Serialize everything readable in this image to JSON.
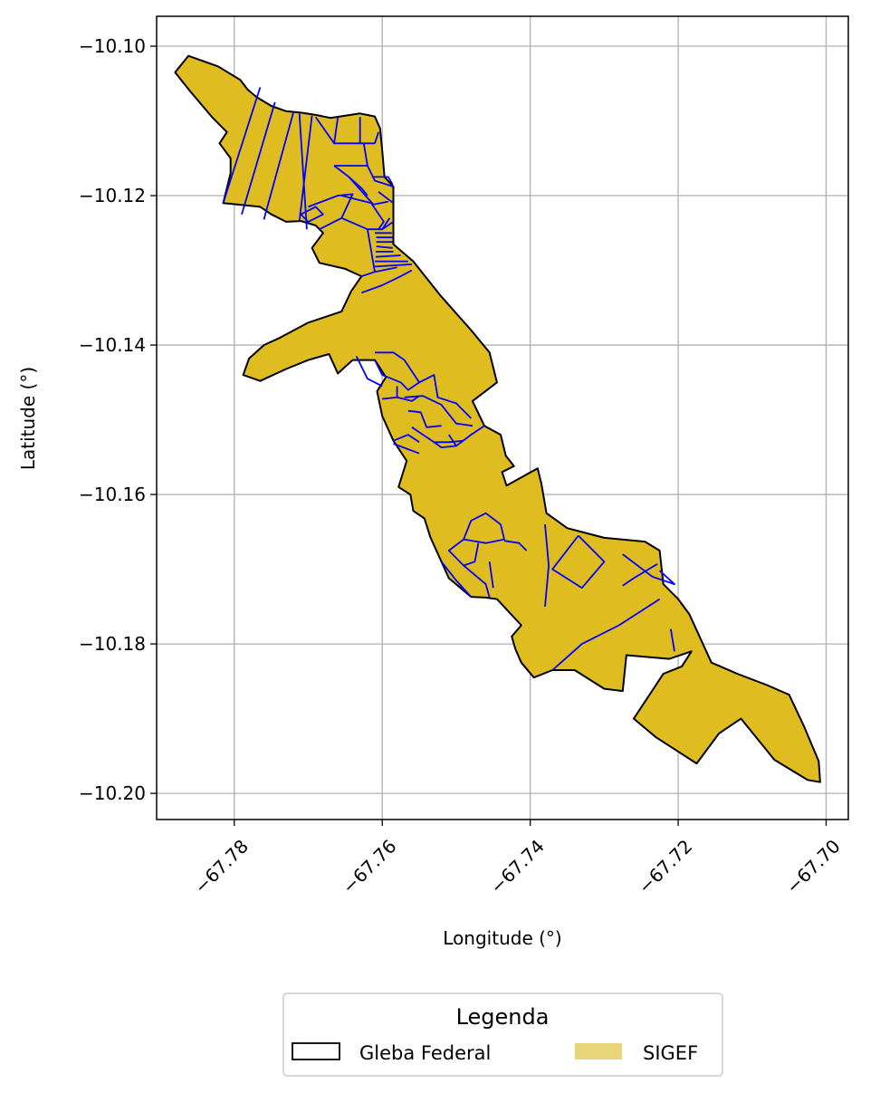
{
  "chart_data": {
    "type": "map",
    "xlabel": "Longitude (°)",
    "ylabel": "Latitude (°)",
    "xlim": [
      -67.7905,
      -67.697
    ],
    "ylim": [
      -10.2035,
      -10.096
    ],
    "x_ticks": [
      {
        "value": -67.78,
        "label": "−67.78"
      },
      {
        "value": -67.76,
        "label": "−67.76"
      },
      {
        "value": -67.74,
        "label": "−67.74"
      },
      {
        "value": -67.72,
        "label": "−67.72"
      },
      {
        "value": -67.7,
        "label": "−67.70"
      }
    ],
    "y_ticks": [
      {
        "value": -10.1,
        "label": "−10.10"
      },
      {
        "value": -10.12,
        "label": "−10.12"
      },
      {
        "value": -10.14,
        "label": "−10.14"
      },
      {
        "value": -10.16,
        "label": "−10.16"
      },
      {
        "value": -10.18,
        "label": "−10.18"
      },
      {
        "value": -10.2,
        "label": "−10.20"
      }
    ],
    "grid": true,
    "legend": {
      "title": "Legenda",
      "position": "bottom-center",
      "entries": [
        {
          "label": "Gleba Federal",
          "style": "outline",
          "color": "#000000"
        },
        {
          "label": "SIGEF",
          "style": "fill",
          "color": "#e8d57a"
        }
      ]
    },
    "colors": {
      "gleba_fill": "#dfbd20",
      "gleba_edge": "#000000",
      "sigef_edge": "#0000ff",
      "grid": "#b0b0b0"
    },
    "gleba_federal_boundary": [
      [
        -67.7862,
        -10.1013
      ],
      [
        -67.7822,
        -10.1027
      ],
      [
        -67.7792,
        -10.1045
      ],
      [
        -67.7782,
        -10.1058
      ],
      [
        -67.777,
        -10.1068
      ],
      [
        -67.775,
        -10.108
      ],
      [
        -67.773,
        -10.1087
      ],
      [
        -67.771,
        -10.1089
      ],
      [
        -67.769,
        -10.1092
      ],
      [
        -67.767,
        -10.1096
      ],
      [
        -67.765,
        -10.1093
      ],
      [
        -67.763,
        -10.109
      ],
      [
        -67.761,
        -10.1094
      ],
      [
        -67.7603,
        -10.111
      ],
      [
        -67.76,
        -10.114
      ],
      [
        -67.7597,
        -10.1175
      ],
      [
        -67.7585,
        -10.1188
      ],
      [
        -67.7585,
        -10.1218
      ],
      [
        -67.7585,
        -10.1265
      ],
      [
        -67.7558,
        -10.1288
      ],
      [
        -67.7522,
        -10.1333
      ],
      [
        -67.748,
        -10.138
      ],
      [
        -67.7455,
        -10.141
      ],
      [
        -67.7445,
        -10.145
      ],
      [
        -67.7478,
        -10.1475
      ],
      [
        -67.7462,
        -10.1508
      ],
      [
        -67.744,
        -10.152
      ],
      [
        -67.7433,
        -10.1548
      ],
      [
        -67.7422,
        -10.1562
      ],
      [
        -67.7438,
        -10.157
      ],
      [
        -67.7432,
        -10.1588
      ],
      [
        -67.739,
        -10.1565
      ],
      [
        -67.7385,
        -10.1585
      ],
      [
        -67.7378,
        -10.1625
      ],
      [
        -67.735,
        -10.1645
      ],
      [
        -67.73,
        -10.1658
      ],
      [
        -67.7245,
        -10.1663
      ],
      [
        -67.7225,
        -10.1675
      ],
      [
        -67.722,
        -10.172
      ],
      [
        -67.72,
        -10.174
      ],
      [
        -67.7185,
        -10.176
      ],
      [
        -67.7155,
        -10.1825
      ],
      [
        -67.712,
        -10.184
      ],
      [
        -67.708,
        -10.1855
      ],
      [
        -67.705,
        -10.1868
      ],
      [
        -67.703,
        -10.191
      ],
      [
        -67.701,
        -10.1957
      ],
      [
        -67.7008,
        -10.1985
      ],
      [
        -67.7025,
        -10.1982
      ],
      [
        -67.7045,
        -10.197
      ],
      [
        -67.707,
        -10.1955
      ],
      [
        -67.7115,
        -10.19
      ],
      [
        -67.7145,
        -10.192
      ],
      [
        -67.7175,
        -10.196
      ],
      [
        -67.723,
        -10.1925
      ],
      [
        -67.726,
        -10.19
      ],
      [
        -67.722,
        -10.184
      ],
      [
        -67.7195,
        -10.183
      ],
      [
        -67.7182,
        -10.181
      ],
      [
        -67.7212,
        -10.182
      ],
      [
        -67.727,
        -10.1815
      ],
      [
        -67.7275,
        -10.1863
      ],
      [
        -67.73,
        -10.186
      ],
      [
        -67.734,
        -10.1835
      ],
      [
        -67.737,
        -10.1835
      ],
      [
        -67.7395,
        -10.1845
      ],
      [
        -67.7412,
        -10.1825
      ],
      [
        -67.742,
        -10.1807
      ],
      [
        -67.7425,
        -10.179
      ],
      [
        -67.7412,
        -10.1775
      ],
      [
        -67.7445,
        -10.174
      ],
      [
        -67.746,
        -10.1738
      ],
      [
        -67.748,
        -10.1737
      ],
      [
        -67.751,
        -10.1712
      ],
      [
        -67.752,
        -10.169
      ],
      [
        -67.7535,
        -10.1657
      ],
      [
        -67.7543,
        -10.1632
      ],
      [
        -67.7558,
        -10.1622
      ],
      [
        -67.7562,
        -10.16
      ],
      [
        -67.7578,
        -10.159
      ],
      [
        -67.7567,
        -10.1555
      ],
      [
        -67.7585,
        -10.1528
      ],
      [
        -67.76,
        -10.1495
      ],
      [
        -67.7607,
        -10.1462
      ],
      [
        -67.7595,
        -10.1443
      ],
      [
        -67.761,
        -10.142
      ],
      [
        -67.764,
        -10.142
      ],
      [
        -67.766,
        -10.1438
      ],
      [
        -67.7672,
        -10.1412
      ],
      [
        -67.77,
        -10.142
      ],
      [
        -67.773,
        -10.1432
      ],
      [
        -67.7765,
        -10.1448
      ],
      [
        -67.7788,
        -10.144
      ],
      [
        -67.778,
        -10.1418
      ],
      [
        -67.776,
        -10.14
      ],
      [
        -67.7738,
        -10.139
      ],
      [
        -67.77,
        -10.137
      ],
      [
        -67.7655,
        -10.1355
      ],
      [
        -67.7642,
        -10.1328
      ],
      [
        -67.7628,
        -10.1308
      ],
      [
        -67.765,
        -10.1298
      ],
      [
        -67.7685,
        -10.129
      ],
      [
        -67.7695,
        -10.127
      ],
      [
        -67.768,
        -10.125
      ],
      [
        -67.769,
        -10.124
      ],
      [
        -67.771,
        -10.1234
      ],
      [
        -67.773,
        -10.1235
      ],
      [
        -67.775,
        -10.1225
      ],
      [
        -67.7765,
        -10.1215
      ],
      [
        -67.7815,
        -10.121
      ],
      [
        -67.7805,
        -10.117
      ],
      [
        -67.7805,
        -10.115
      ],
      [
        -67.782,
        -10.113
      ],
      [
        -67.781,
        -10.1115
      ],
      [
        -67.783,
        -10.1095
      ],
      [
        -67.786,
        -10.106
      ],
      [
        -67.788,
        -10.1035
      ],
      [
        -67.7862,
        -10.1013
      ]
    ],
    "sigef_parcels": [
      [
        [
          -67.7765,
          -10.1055
        ],
        [
          -67.7815,
          -10.121
        ]
      ],
      [
        [
          -67.7745,
          -10.1075
        ],
        [
          -67.779,
          -10.1225
        ]
      ],
      [
        [
          -67.772,
          -10.1088
        ],
        [
          -67.776,
          -10.1232
        ]
      ],
      [
        [
          -67.7695,
          -10.1093
        ],
        [
          -67.7712,
          -10.1234
        ]
      ],
      [
        [
          -67.7712,
          -10.109
        ],
        [
          -67.7702,
          -10.1245
        ]
      ],
      [
        [
          -67.769,
          -10.1095
        ],
        [
          -67.7665,
          -10.113
        ],
        [
          -67.764,
          -10.113
        ],
        [
          -67.761,
          -10.113
        ]
      ],
      [
        [
          -67.7665,
          -10.113
        ],
        [
          -67.766,
          -10.1095
        ]
      ],
      [
        [
          -67.763,
          -10.1095
        ],
        [
          -67.763,
          -10.113
        ]
      ],
      [
        [
          -67.7605,
          -10.1115
        ],
        [
          -67.761,
          -10.113
        ]
      ],
      [
        [
          -67.7625,
          -10.113
        ],
        [
          -67.762,
          -10.116
        ],
        [
          -67.7665,
          -10.116
        ]
      ],
      [
        [
          -67.7665,
          -10.116
        ],
        [
          -67.7645,
          -10.1175
        ],
        [
          -67.7628,
          -10.119
        ],
        [
          -67.762,
          -10.12
        ]
      ],
      [
        [
          -67.7645,
          -10.1175
        ],
        [
          -67.7612,
          -10.1212
        ],
        [
          -67.7592,
          -10.1208
        ]
      ],
      [
        [
          -67.762,
          -10.116
        ],
        [
          -67.761,
          -10.118
        ],
        [
          -67.7585,
          -10.1188
        ]
      ],
      [
        [
          -67.7655,
          -10.12
        ],
        [
          -67.7615,
          -10.121
        ],
        [
          -67.7598,
          -10.1235
        ],
        [
          -67.7605,
          -10.1245
        ]
      ],
      [
        [
          -67.77,
          -10.1215
        ],
        [
          -67.766,
          -10.12
        ],
        [
          -67.764,
          -10.1198
        ],
        [
          -67.7655,
          -10.123
        ],
        [
          -67.7685,
          -10.1245
        ]
      ],
      [
        [
          -67.771,
          -10.1225
        ],
        [
          -67.769,
          -10.1215
        ],
        [
          -67.768,
          -10.1225
        ],
        [
          -67.77,
          -10.1235
        ],
        [
          -67.771,
          -10.1225
        ]
      ],
      [
        [
          -67.7655,
          -10.123
        ],
        [
          -67.762,
          -10.1245
        ],
        [
          -67.76,
          -10.1245
        ],
        [
          -67.759,
          -10.123
        ]
      ],
      [
        [
          -67.76,
          -10.1245
        ],
        [
          -67.7585,
          -10.1235
        ]
      ],
      [
        [
          -67.762,
          -10.1245
        ],
        [
          -67.761,
          -10.1302
        ]
      ],
      [
        [
          -67.7605,
          -10.1195
        ],
        [
          -67.7585,
          -10.121
        ]
      ],
      [
        [
          -67.7612,
          -10.1175
        ],
        [
          -67.7592,
          -10.1175
        ],
        [
          -67.7586,
          -10.1185
        ]
      ],
      [
        [
          -67.761,
          -10.125
        ],
        [
          -67.7587,
          -10.125
        ]
      ],
      [
        [
          -67.7608,
          -10.1256
        ],
        [
          -67.7586,
          -10.1256
        ]
      ],
      [
        [
          -67.7608,
          -10.1262
        ],
        [
          -67.7586,
          -10.1262
        ]
      ],
      [
        [
          -67.7608,
          -10.1268
        ],
        [
          -67.7586,
          -10.127
        ]
      ],
      [
        [
          -67.7609,
          -10.1275
        ],
        [
          -67.7585,
          -10.1275
        ]
      ],
      [
        [
          -67.7609,
          -10.1282
        ],
        [
          -67.7575,
          -10.128
        ]
      ],
      [
        [
          -67.761,
          -10.1288
        ],
        [
          -67.7565,
          -10.1288
        ]
      ],
      [
        [
          -67.761,
          -10.1295
        ],
        [
          -67.756,
          -10.1292
        ]
      ],
      [
        [
          -67.7628,
          -10.1308
        ],
        [
          -67.761,
          -10.1302
        ],
        [
          -67.758,
          -10.1296
        ]
      ],
      [
        [
          -67.7628,
          -10.133
        ],
        [
          -67.76,
          -10.132
        ],
        [
          -67.7575,
          -10.1308
        ],
        [
          -67.756,
          -10.13
        ]
      ],
      [
        [
          -67.761,
          -10.142
        ],
        [
          -67.76,
          -10.144
        ],
        [
          -67.7575,
          -10.145
        ],
        [
          -67.7565,
          -10.146
        ],
        [
          -67.755,
          -10.145
        ],
        [
          -67.757,
          -10.142
        ],
        [
          -67.7585,
          -10.141
        ],
        [
          -67.761,
          -10.141
        ]
      ],
      [
        [
          -67.7635,
          -10.1415
        ],
        [
          -67.762,
          -10.1445
        ],
        [
          -67.76,
          -10.1455
        ]
      ],
      [
        [
          -67.755,
          -10.145
        ],
        [
          -67.753,
          -10.144
        ],
        [
          -67.7525,
          -10.147
        ],
        [
          -67.75,
          -10.1478
        ],
        [
          -67.748,
          -10.1498
        ]
      ],
      [
        [
          -67.757,
          -10.147
        ],
        [
          -67.7545,
          -10.1468
        ],
        [
          -67.752,
          -10.148
        ],
        [
          -67.75,
          -10.1505
        ],
        [
          -67.7478,
          -10.1508
        ]
      ],
      [
        [
          -67.758,
          -10.1455
        ],
        [
          -67.758,
          -10.147
        ],
        [
          -67.756,
          -10.1475
        ],
        [
          -67.755,
          -10.1468
        ]
      ],
      [
        [
          -67.7565,
          -10.1488
        ],
        [
          -67.7548,
          -10.149
        ],
        [
          -67.754,
          -10.151
        ],
        [
          -67.752,
          -10.1508
        ]
      ],
      [
        [
          -67.756,
          -10.151
        ],
        [
          -67.7548,
          -10.1518
        ],
        [
          -67.753,
          -10.153
        ],
        [
          -67.751,
          -10.153
        ],
        [
          -67.749,
          -10.1528
        ]
      ],
      [
        [
          -67.753,
          -10.153
        ],
        [
          -67.752,
          -10.1537
        ],
        [
          -67.75,
          -10.1535
        ],
        [
          -67.748,
          -10.152
        ],
        [
          -67.7462,
          -10.1508
        ]
      ],
      [
        [
          -67.751,
          -10.152
        ],
        [
          -67.75,
          -10.1535
        ]
      ],
      [
        [
          -67.7585,
          -10.1528
        ],
        [
          -67.7565,
          -10.152
        ],
        [
          -67.755,
          -10.153
        ]
      ],
      [
        [
          -67.755,
          -10.1545
        ],
        [
          -67.7585,
          -10.1532
        ]
      ],
      [
        [
          -67.758,
          -10.147
        ],
        [
          -67.76,
          -10.1472
        ]
      ],
      [
        [
          -67.744,
          -10.164
        ],
        [
          -67.7435,
          -10.166
        ],
        [
          -67.746,
          -10.1665
        ],
        [
          -67.749,
          -10.166
        ],
        [
          -67.748,
          -10.1635
        ],
        [
          -67.746,
          -10.1625
        ],
        [
          -67.744,
          -10.164
        ]
      ],
      [
        [
          -67.749,
          -10.166
        ],
        [
          -67.751,
          -10.1675
        ],
        [
          -67.749,
          -10.1695
        ],
        [
          -67.746,
          -10.172
        ],
        [
          -67.7455,
          -10.1738
        ]
      ],
      [
        [
          -67.749,
          -10.1695
        ],
        [
          -67.7475,
          -10.169
        ],
        [
          -67.747,
          -10.1665
        ]
      ],
      [
        [
          -67.7435,
          -10.1662
        ],
        [
          -67.7415,
          -10.1665
        ],
        [
          -67.7405,
          -10.1675
        ]
      ],
      [
        [
          -67.7455,
          -10.169
        ],
        [
          -67.745,
          -10.1725
        ]
      ],
      [
        [
          -67.752,
          -10.169
        ],
        [
          -67.75,
          -10.1715
        ],
        [
          -67.748,
          -10.1737
        ]
      ],
      [
        [
          -67.738,
          -10.164
        ],
        [
          -67.7375,
          -10.1695
        ],
        [
          -67.738,
          -10.175
        ]
      ],
      [
        [
          -67.7335,
          -10.1655
        ],
        [
          -67.737,
          -10.17
        ],
        [
          -67.733,
          -10.1725
        ],
        [
          -67.73,
          -10.169
        ],
        [
          -67.7335,
          -10.1655
        ]
      ],
      [
        [
          -67.7275,
          -10.168
        ],
        [
          -67.7235,
          -10.171
        ],
        [
          -67.7205,
          -10.172
        ],
        [
          -67.7225,
          -10.1702
        ]
      ],
      [
        [
          -67.7225,
          -10.174
        ],
        [
          -67.728,
          -10.1775
        ],
        [
          -67.733,
          -10.18
        ],
        [
          -67.737,
          -10.1835
        ]
      ],
      [
        [
          -67.721,
          -10.178
        ],
        [
          -67.7205,
          -10.181
        ]
      ],
      [
        [
          -67.7228,
          -10.1693
        ],
        [
          -67.724,
          -10.17
        ],
        [
          -67.726,
          -10.1712
        ],
        [
          -67.7275,
          -10.1722
        ]
      ]
    ]
  }
}
